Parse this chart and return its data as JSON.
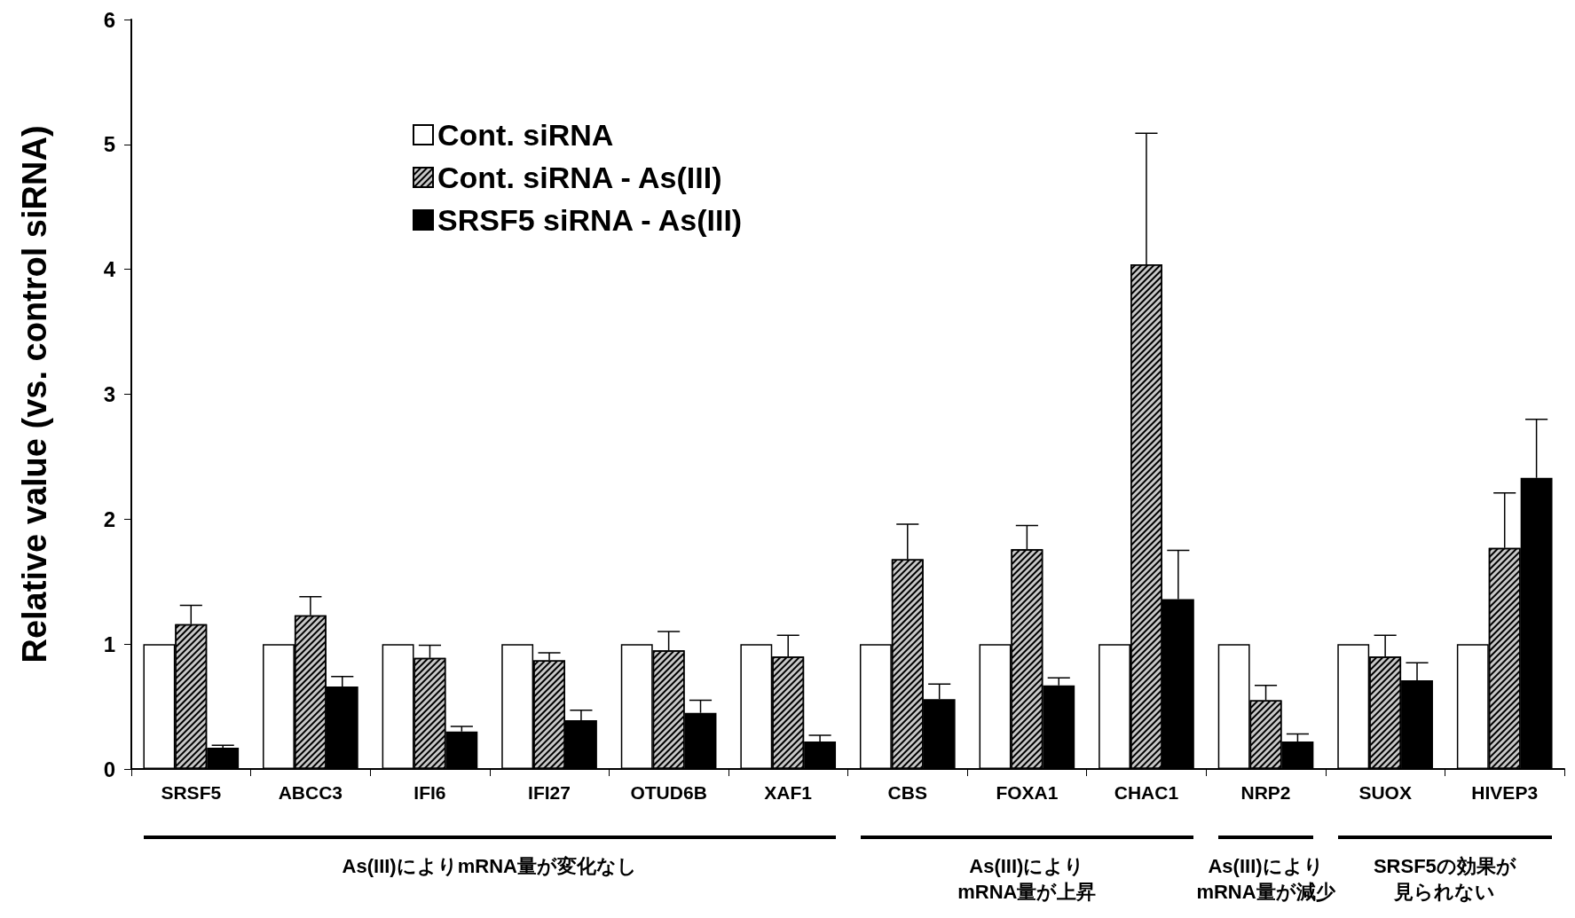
{
  "chart_data": {
    "type": "bar",
    "ylabel": "Relative value (vs. control siRNA)",
    "categories": [
      "SRSF5",
      "ABCC3",
      "IFI6",
      "IFI27",
      "OTUD6B",
      "XAF1",
      "CBS",
      "FOXA1",
      "CHAC1",
      "NRP2",
      "SUOX",
      "HIVEP3"
    ],
    "series": [
      {
        "name": "Cont. siRNA",
        "color": "#ffffff",
        "values": [
          1,
          1,
          1,
          1,
          1,
          1,
          1,
          1,
          1,
          1,
          1,
          1
        ]
      },
      {
        "name": "Cont. siRNA - As(III)",
        "color": "#c8c8c8",
        "values": [
          1.16,
          1.23,
          0.89,
          0.87,
          0.95,
          0.9,
          1.68,
          1.76,
          4.04,
          0.55,
          0.9,
          1.77
        ],
        "errors": [
          [
            1.16,
            1.31
          ],
          [
            1.23,
            1.38
          ],
          [
            0.89,
            0.99
          ],
          [
            0.87,
            0.93
          ],
          [
            0.95,
            1.1
          ],
          [
            0.9,
            1.07
          ],
          [
            1.68,
            1.96
          ],
          [
            1.76,
            1.95
          ],
          [
            4.04,
            5.09
          ],
          [
            0.55,
            0.67
          ],
          [
            0.9,
            1.07
          ],
          [
            1.77,
            2.21
          ]
        ]
      },
      {
        "name": "SRSF5 siRNA - As(III)",
        "color": "#000000",
        "values": [
          0.17,
          0.66,
          0.3,
          0.39,
          0.45,
          0.22,
          0.56,
          0.67,
          1.36,
          0.22,
          0.71,
          2.33
        ],
        "errors": [
          [
            0.17,
            0.19
          ],
          [
            0.66,
            0.74
          ],
          [
            0.3,
            0.34
          ],
          [
            0.39,
            0.47
          ],
          [
            0.45,
            0.55
          ],
          [
            0.22,
            0.27
          ],
          [
            0.56,
            0.68
          ],
          [
            0.67,
            0.73
          ],
          [
            1.36,
            1.75
          ],
          [
            0.22,
            0.28
          ],
          [
            0.71,
            0.85
          ],
          [
            2.33,
            2.8
          ]
        ]
      }
    ],
    "ylim": [
      0,
      6
    ],
    "yticks": [
      0,
      1,
      2,
      3,
      4,
      5,
      6
    ],
    "grid": false,
    "legend": "top left",
    "annotations": [
      "As(III)によりmRNA量が変化なし",
      "As(III)によりmRNA量が上昇",
      "As(III)によりmRNA量が減少",
      "SRSF5の効果が見られない"
    ]
  }
}
